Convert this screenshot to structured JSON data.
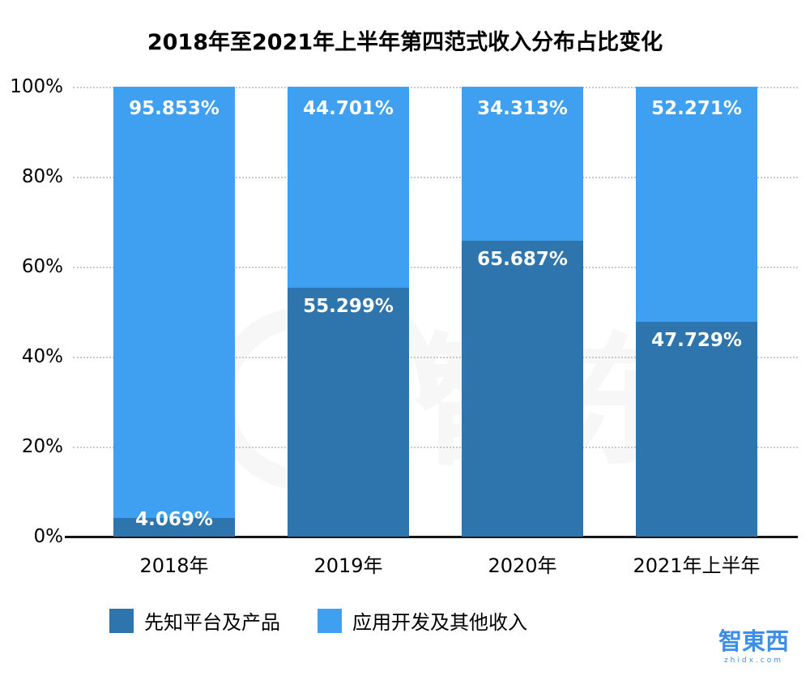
{
  "title": "2018年至2021年上半年第四范式收入分布占比变化",
  "watermark": "智东西",
  "footer_logo": {
    "text": "智東西",
    "sub": "zhidx.com"
  },
  "chart_data": {
    "type": "bar",
    "stacked": true,
    "percent_stacked": true,
    "title": "2018年至2021年上半年第四范式收入分布占比变化",
    "categories": [
      "2018年",
      "2019年",
      "2020年",
      "2021年上半年"
    ],
    "series": [
      {
        "name": "先知平台及产品",
        "color": "#2e75ad",
        "values": [
          4.069,
          55.299,
          65.687,
          47.729
        ],
        "labels": [
          "4.069%",
          "55.299%",
          "65.687%",
          "47.729%"
        ]
      },
      {
        "name": "应用开发及其他收入",
        "color": "#3f9ff0",
        "values": [
          95.853,
          44.701,
          34.313,
          52.271
        ],
        "labels": [
          "95.853%",
          "44.701%",
          "34.313%",
          "52.271%"
        ]
      }
    ],
    "y_ticks": [
      {
        "value": 100,
        "label": "100%"
      },
      {
        "value": 80,
        "label": "80%"
      },
      {
        "value": 60,
        "label": "60%"
      },
      {
        "value": 40,
        "label": "40%"
      },
      {
        "value": 20,
        "label": "20%"
      },
      {
        "value": 0,
        "label": "0%"
      }
    ],
    "ylim": [
      0,
      100
    ],
    "xlabel": "",
    "ylabel": "",
    "grid": "horizontal-dotted",
    "legend_position": "bottom-left"
  }
}
